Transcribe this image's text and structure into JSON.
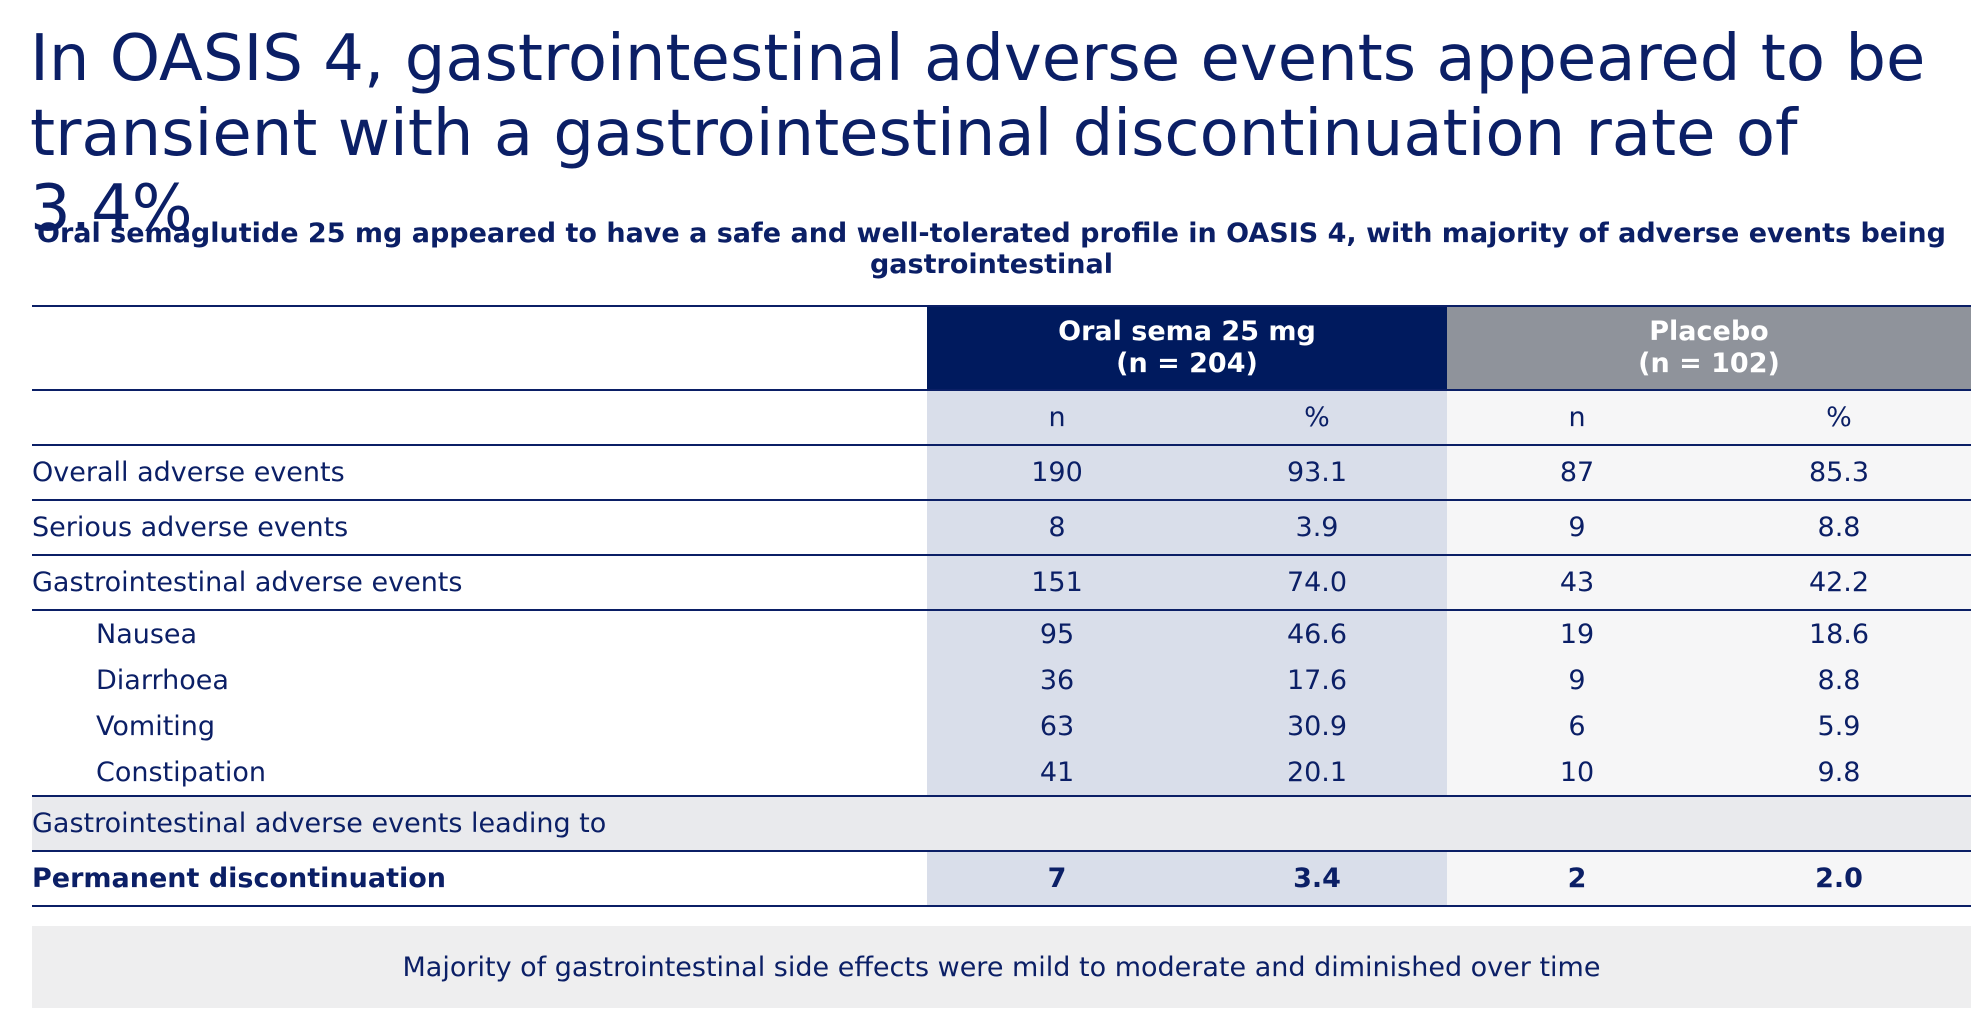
{
  "title": "In OASIS 4, gastrointestinal adverse events appeared to be transient with a gastrointestinal discontinuation rate of 3.4%",
  "subtitle": "Oral semaglutide 25 mg appeared to have a safe and well-tolerated profile in OASIS 4, with majority of adverse events being gastrointestinal",
  "table": {
    "groups": [
      {
        "name": "Oral sema 25 mg",
        "n_label": "(n = 204)",
        "color": "#001a5e"
      },
      {
        "name": "Placebo",
        "n_label": "(n = 102)",
        "color": "#8f939b"
      }
    ],
    "subheaders": [
      "n",
      "%",
      "n",
      "%"
    ],
    "rows": [
      {
        "label": "Overall adverse events",
        "values": [
          "190",
          "93.1",
          "87",
          "85.3"
        ]
      },
      {
        "label": "Serious adverse events",
        "values": [
          "8",
          "3.9",
          "9",
          "8.8"
        ]
      },
      {
        "label": "Gastrointestinal adverse events",
        "values": [
          "151",
          "74.0",
          "43",
          "42.2"
        ]
      },
      {
        "label": "Nausea",
        "values": [
          "95",
          "46.6",
          "19",
          "18.6"
        ]
      },
      {
        "label": "Diarrhoea",
        "values": [
          "36",
          "17.6",
          "9",
          "8.8"
        ]
      },
      {
        "label": "Vomiting",
        "values": [
          "63",
          "30.9",
          "6",
          "5.9"
        ]
      },
      {
        "label": "Constipation",
        "values": [
          "41",
          "20.1",
          "10",
          "9.8"
        ]
      },
      {
        "label": "Gastrointestinal adverse events leading to",
        "values": []
      },
      {
        "label": "Permanent discontinuation",
        "values": [
          "7",
          "3.4",
          "2",
          "2.0"
        ]
      }
    ]
  },
  "note": "Majority of gastrointestinal side effects were mild to moderate and diminished over time"
}
